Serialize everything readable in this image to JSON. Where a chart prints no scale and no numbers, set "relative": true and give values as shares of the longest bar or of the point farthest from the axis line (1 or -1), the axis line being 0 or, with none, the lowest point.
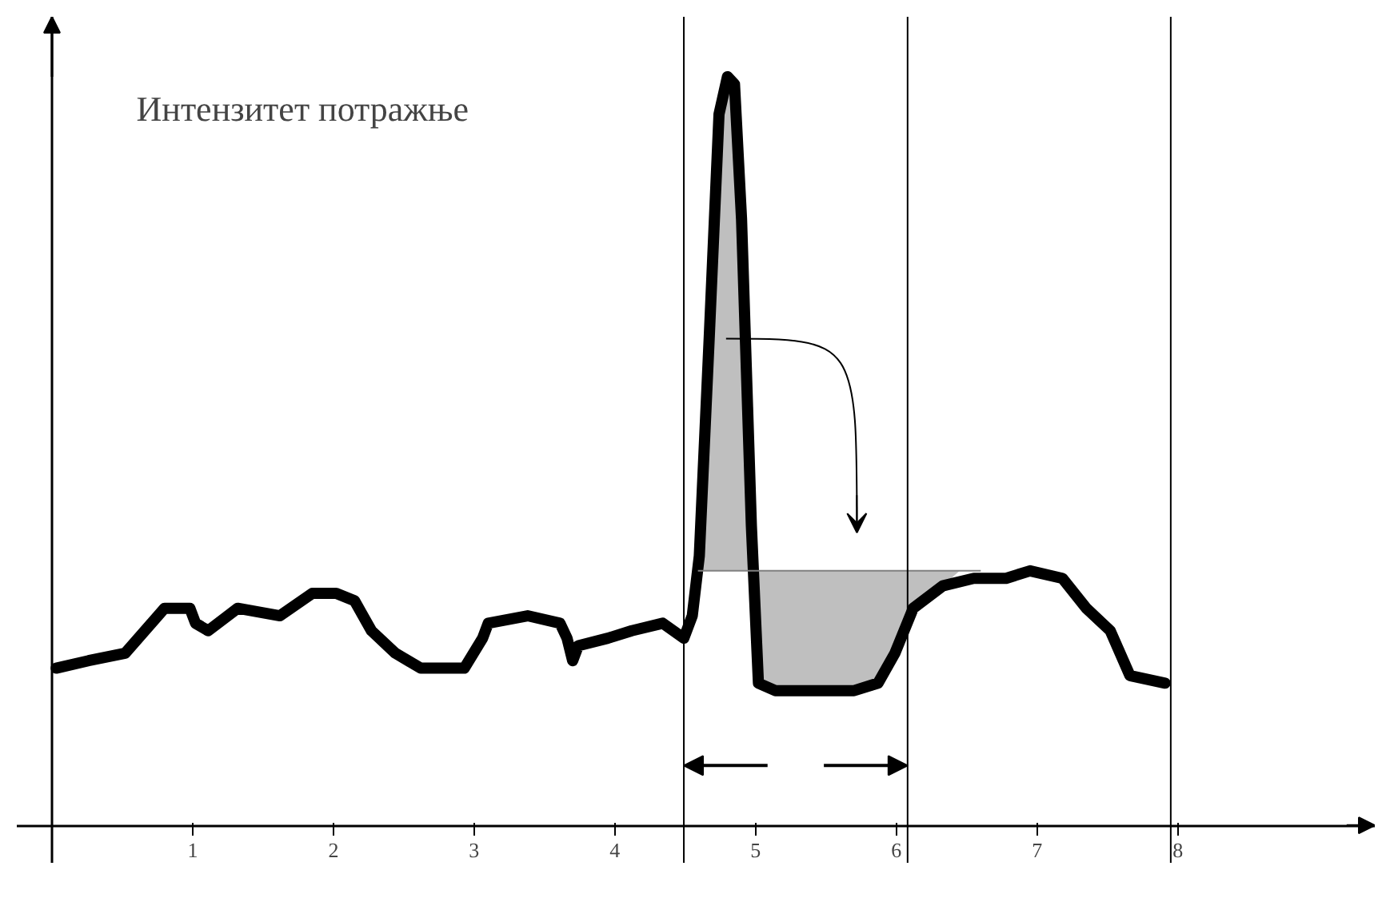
{
  "chart_data": {
    "type": "line",
    "relative": true,
    "ylabel": "Интензитет потражње",
    "xlim": [
      -0.25,
      9.4
    ],
    "xticks": [
      1,
      2,
      3,
      4,
      5,
      6,
      7,
      8
    ],
    "grid": false,
    "marker": "none",
    "line_style": "solid",
    "series": [
      {
        "color": "#000000",
        "x": [
          0.03,
          0.26,
          0.52,
          0.8,
          0.98,
          1.02,
          1.11,
          1.32,
          1.62,
          1.85,
          2.02,
          2.15,
          2.27,
          2.44,
          2.62,
          2.93,
          3.06,
          3.1,
          3.38,
          3.61,
          3.66,
          3.7,
          3.74,
          3.95,
          4.12,
          4.34,
          4.49,
          4.55,
          4.6,
          4.67,
          4.74,
          4.8,
          4.85,
          4.9,
          4.97,
          5.02,
          5.14,
          5.7,
          5.87,
          5.99,
          6.12,
          6.33,
          6.55,
          6.78,
          6.95,
          7.18,
          7.35,
          7.52,
          7.66,
          7.91
        ],
        "values": [
          0.21,
          0.22,
          0.23,
          0.29,
          0.29,
          0.27,
          0.26,
          0.29,
          0.28,
          0.31,
          0.31,
          0.3,
          0.26,
          0.23,
          0.21,
          0.21,
          0.25,
          0.27,
          0.28,
          0.27,
          0.25,
          0.22,
          0.24,
          0.25,
          0.26,
          0.27,
          0.25,
          0.28,
          0.36,
          0.65,
          0.95,
          1.0,
          0.99,
          0.81,
          0.4,
          0.19,
          0.18,
          0.18,
          0.19,
          0.23,
          0.29,
          0.32,
          0.33,
          0.33,
          0.34,
          0.33,
          0.29,
          0.26,
          0.2,
          0.19
        ]
      },
      {
        "type": "area",
        "color": "#bfbfbf",
        "x": [
          4.59,
          4.6,
          4.67,
          4.74,
          4.8,
          4.85,
          4.9,
          4.97,
          4.99
        ],
        "values": [
          0.34,
          0.36,
          0.65,
          0.95,
          1.0,
          0.99,
          0.81,
          0.4,
          0.34
        ]
      },
      {
        "type": "area",
        "color": "#bfbfbf",
        "x": [
          4.99,
          5.02,
          5.14,
          5.7,
          5.87,
          5.99,
          6.12,
          6.33,
          6.45
        ],
        "values": [
          0.34,
          0.19,
          0.18,
          0.18,
          0.19,
          0.23,
          0.29,
          0.32,
          0.34
        ]
      }
    ],
    "ref_lines": [
      {
        "axis": "y",
        "value": 0.34
      },
      {
        "axis": "x",
        "value": 4.49
      },
      {
        "axis": "x",
        "value": 6.08
      },
      {
        "axis": "x",
        "value": 7.95
      }
    ]
  }
}
